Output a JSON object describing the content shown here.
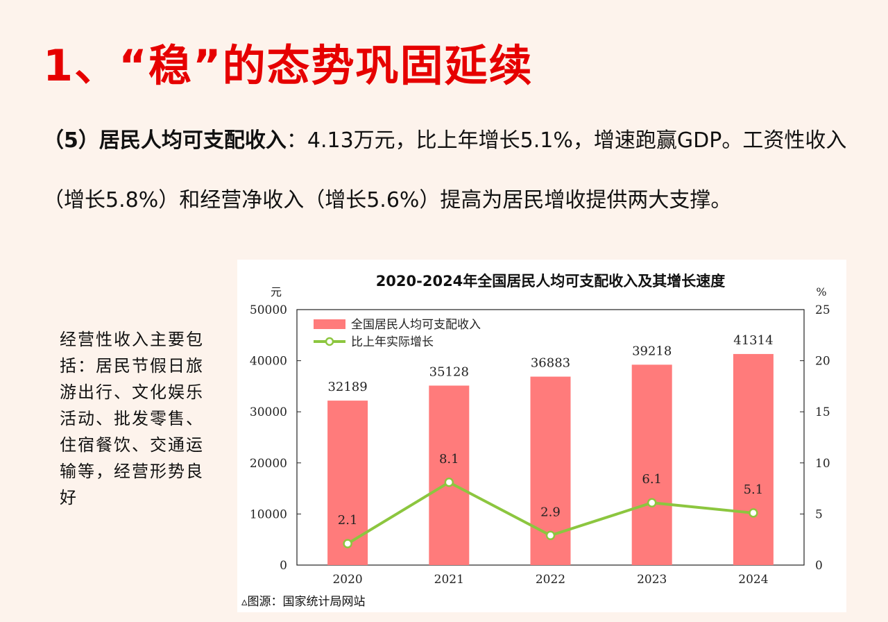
{
  "heading": "1、“稳”的态势巩固延续",
  "paragraph": {
    "lead": "（5）居民人均可支配收入",
    "rest": "：4.13万元，比上年增长5.1%，增速跑赢GDP。工资性收入（增长5.8%）和经营净收入（增长5.6%）提高为居民增收提供两大支撑。"
  },
  "side_note": "经营性收入主要包括：居民节假日旅游出行、文化娱乐活动、批发零售、住宿餐饮、交通运输等，经营形势良好",
  "source": "▵图源：国家统计局网站",
  "colors": {
    "bar": "#ff7b7b",
    "line": "#8cc63f",
    "heading": "#e60000"
  },
  "chart_data": {
    "type": "bar",
    "title": "2020-2024年全国居民人均可支配收入及其增长速度",
    "categories": [
      "2020",
      "2021",
      "2022",
      "2023",
      "2024"
    ],
    "ylabel": "元",
    "y2label": "%",
    "ylim": [
      0,
      50000
    ],
    "y2lim": [
      0,
      25
    ],
    "yticks": [
      0,
      10000,
      20000,
      30000,
      40000,
      50000
    ],
    "y2ticks": [
      0,
      5,
      10,
      15,
      20,
      25
    ],
    "series": [
      {
        "name": "全国居民人均可支配收入",
        "type": "bar",
        "axis": "left",
        "values": [
          32189,
          35128,
          36883,
          39218,
          41314
        ],
        "labels": [
          "32189",
          "35128",
          "36883",
          "39218",
          "41314"
        ]
      },
      {
        "name": "比上年实际增长",
        "type": "line",
        "axis": "right",
        "values": [
          2.1,
          8.1,
          2.9,
          6.1,
          5.1
        ],
        "labels": [
          "2.1",
          "8.1",
          "2.9",
          "6.1",
          "5.1"
        ]
      }
    ],
    "legend": "top-left"
  }
}
